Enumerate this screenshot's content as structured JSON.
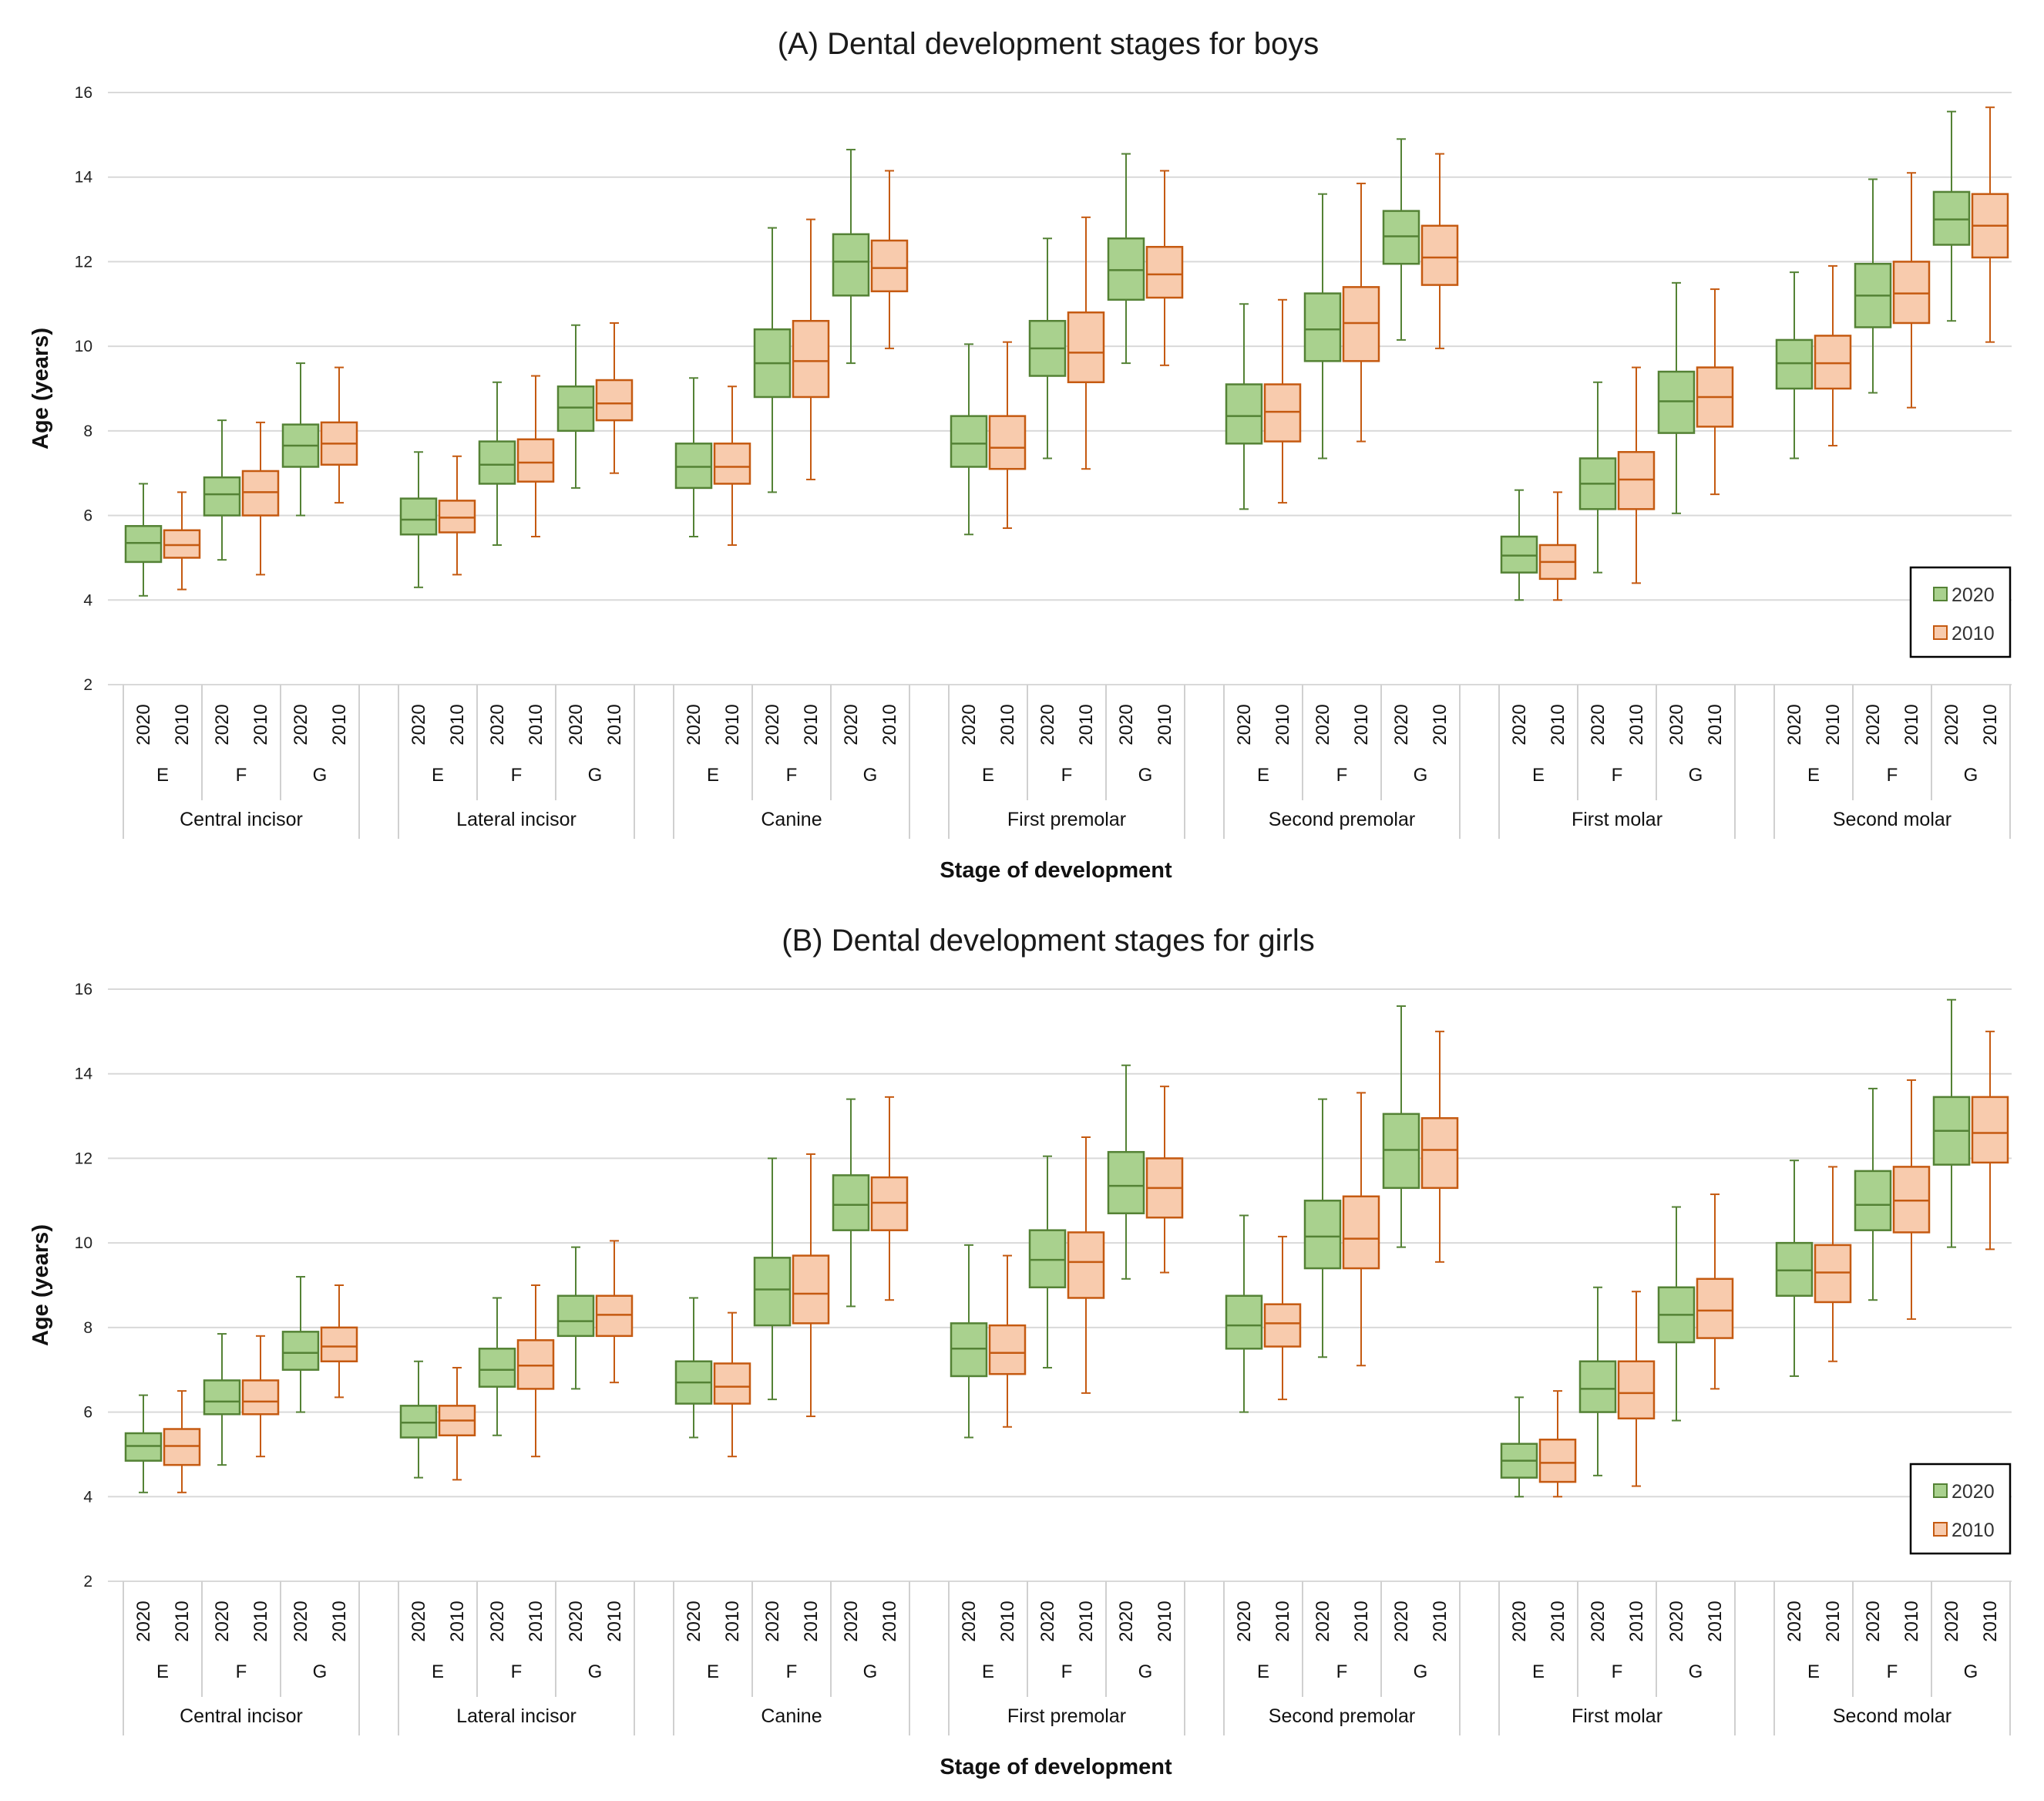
{
  "chart_data": [
    {
      "type": "box",
      "title": "(A) Dental development stages for boys",
      "xlabel": "Stage of development",
      "ylabel": "Age (years)",
      "ylim": [
        2,
        16
      ],
      "yticks": [
        2,
        4,
        6,
        8,
        10,
        12,
        14,
        16
      ],
      "grid": "horizontal",
      "legend": {
        "position": "right",
        "entries": [
          "2020",
          "2010"
        ]
      },
      "colors": {
        "2020_fill": "#a9d18e",
        "2020_stroke": "#548235",
        "2010_fill": "#f8cbad",
        "2010_stroke": "#c55a11"
      },
      "teeth": [
        "Central incisor",
        "Lateral incisor",
        "Canine",
        "First premolar",
        "Second premolar",
        "First molar",
        "Second molar"
      ],
      "stages": [
        "E",
        "F",
        "G"
      ],
      "series_years": [
        "2020",
        "2010"
      ],
      "box_format": "[whisker_low, Q1, median, Q3, whisker_high]",
      "boxes": [
        [
          [
            [
              4.1,
              4.9,
              5.35,
              5.75,
              6.75
            ],
            [
              4.25,
              5.0,
              5.3,
              5.65,
              6.55
            ]
          ],
          [
            [
              4.95,
              6.0,
              6.5,
              6.9,
              8.25
            ],
            [
              4.6,
              6.0,
              6.55,
              7.05,
              8.2
            ]
          ],
          [
            [
              6.0,
              7.15,
              7.65,
              8.15,
              9.6
            ],
            [
              6.3,
              7.2,
              7.7,
              8.2,
              9.5
            ]
          ]
        ],
        [
          [
            [
              4.3,
              5.55,
              5.9,
              6.4,
              7.5
            ],
            [
              4.6,
              5.6,
              5.95,
              6.35,
              7.4
            ]
          ],
          [
            [
              5.3,
              6.75,
              7.2,
              7.75,
              9.15
            ],
            [
              5.5,
              6.8,
              7.25,
              7.8,
              9.3
            ]
          ],
          [
            [
              6.65,
              8.0,
              8.55,
              9.05,
              10.5
            ],
            [
              7.0,
              8.25,
              8.65,
              9.2,
              10.55
            ]
          ]
        ],
        [
          [
            [
              5.5,
              6.65,
              7.15,
              7.7,
              9.25
            ],
            [
              5.3,
              6.75,
              7.15,
              7.7,
              9.05
            ]
          ],
          [
            [
              6.55,
              8.8,
              9.6,
              10.4,
              12.8
            ],
            [
              6.85,
              8.8,
              9.65,
              10.6,
              13.0
            ]
          ],
          [
            [
              9.6,
              11.2,
              12.0,
              12.65,
              14.65
            ],
            [
              9.95,
              11.3,
              11.85,
              12.5,
              14.15
            ]
          ]
        ],
        [
          [
            [
              5.55,
              7.15,
              7.7,
              8.35,
              10.05
            ],
            [
              5.7,
              7.1,
              7.6,
              8.35,
              10.1
            ]
          ],
          [
            [
              7.35,
              9.3,
              9.95,
              10.6,
              12.55
            ],
            [
              7.1,
              9.15,
              9.85,
              10.8,
              13.05
            ]
          ],
          [
            [
              9.6,
              11.1,
              11.8,
              12.55,
              14.55
            ],
            [
              9.55,
              11.15,
              11.7,
              12.35,
              14.15
            ]
          ]
        ],
        [
          [
            [
              6.15,
              7.7,
              8.35,
              9.1,
              11.0
            ],
            [
              6.3,
              7.75,
              8.45,
              9.1,
              11.1
            ]
          ],
          [
            [
              7.35,
              9.65,
              10.4,
              11.25,
              13.6
            ],
            [
              7.75,
              9.65,
              10.55,
              11.4,
              13.85
            ]
          ],
          [
            [
              10.15,
              11.95,
              12.6,
              13.2,
              14.9
            ],
            [
              9.95,
              11.45,
              12.1,
              12.85,
              14.55
            ]
          ]
        ],
        [
          [
            [
              4.0,
              4.65,
              5.05,
              5.5,
              6.6
            ],
            [
              4.0,
              4.5,
              4.9,
              5.3,
              6.55
            ]
          ],
          [
            [
              4.65,
              6.15,
              6.75,
              7.35,
              9.15
            ],
            [
              4.4,
              6.15,
              6.85,
              7.5,
              9.5
            ]
          ],
          [
            [
              6.05,
              7.95,
              8.7,
              9.4,
              11.5
            ],
            [
              6.5,
              8.1,
              8.8,
              9.5,
              11.35
            ]
          ]
        ],
        [
          [
            [
              7.35,
              9.0,
              9.6,
              10.15,
              11.75
            ],
            [
              7.65,
              9.0,
              9.6,
              10.25,
              11.9
            ]
          ],
          [
            [
              8.9,
              10.45,
              11.2,
              11.95,
              13.95
            ],
            [
              8.55,
              10.55,
              11.25,
              12.0,
              14.1
            ]
          ],
          [
            [
              10.6,
              12.4,
              13.0,
              13.65,
              15.55
            ],
            [
              10.1,
              12.1,
              12.85,
              13.6,
              15.65
            ]
          ]
        ]
      ]
    },
    {
      "type": "box",
      "title": "(B) Dental development stages for girls",
      "xlabel": "Stage of development",
      "ylabel": "Age (years)",
      "ylim": [
        2,
        16
      ],
      "yticks": [
        2,
        4,
        6,
        8,
        10,
        12,
        14,
        16
      ],
      "grid": "horizontal",
      "legend": {
        "position": "right",
        "entries": [
          "2020",
          "2010"
        ]
      },
      "colors": {
        "2020_fill": "#a9d18e",
        "2020_stroke": "#548235",
        "2010_fill": "#f8cbad",
        "2010_stroke": "#c55a11"
      },
      "teeth": [
        "Central incisor",
        "Lateral incisor",
        "Canine",
        "First premolar",
        "Second premolar",
        "First molar",
        "Second molar"
      ],
      "stages": [
        "E",
        "F",
        "G"
      ],
      "series_years": [
        "2020",
        "2010"
      ],
      "box_format": "[whisker_low, Q1, median, Q3, whisker_high]",
      "boxes": [
        [
          [
            [
              4.1,
              4.85,
              5.2,
              5.5,
              6.4
            ],
            [
              4.1,
              4.75,
              5.2,
              5.6,
              6.5
            ]
          ],
          [
            [
              4.75,
              5.95,
              6.25,
              6.75,
              7.85
            ],
            [
              4.95,
              5.95,
              6.25,
              6.75,
              7.8
            ]
          ],
          [
            [
              6.0,
              7.0,
              7.4,
              7.9,
              9.2
            ],
            [
              6.35,
              7.2,
              7.55,
              8.0,
              9.0
            ]
          ]
        ],
        [
          [
            [
              4.45,
              5.4,
              5.75,
              6.15,
              7.2
            ],
            [
              4.4,
              5.45,
              5.8,
              6.15,
              7.05
            ]
          ],
          [
            [
              5.45,
              6.6,
              7.0,
              7.5,
              8.7
            ],
            [
              4.95,
              6.55,
              7.1,
              7.7,
              9.0
            ]
          ],
          [
            [
              6.55,
              7.8,
              8.15,
              8.75,
              9.9
            ],
            [
              6.7,
              7.8,
              8.3,
              8.75,
              10.05
            ]
          ]
        ],
        [
          [
            [
              5.4,
              6.2,
              6.7,
              7.2,
              8.7
            ],
            [
              4.95,
              6.2,
              6.6,
              7.15,
              8.35
            ]
          ],
          [
            [
              6.3,
              8.05,
              8.9,
              9.65,
              12.0
            ],
            [
              5.9,
              8.1,
              8.8,
              9.7,
              12.1
            ]
          ],
          [
            [
              8.5,
              10.3,
              10.9,
              11.6,
              13.4
            ],
            [
              8.65,
              10.3,
              10.95,
              11.55,
              13.45
            ]
          ]
        ],
        [
          [
            [
              5.4,
              6.85,
              7.5,
              8.1,
              9.95
            ],
            [
              5.65,
              6.9,
              7.4,
              8.05,
              9.7
            ]
          ],
          [
            [
              7.05,
              8.95,
              9.6,
              10.3,
              12.05
            ],
            [
              6.45,
              8.7,
              9.55,
              10.25,
              12.5
            ]
          ],
          [
            [
              9.15,
              10.7,
              11.35,
              12.15,
              14.2
            ],
            [
              9.3,
              10.6,
              11.3,
              12.0,
              13.7
            ]
          ]
        ],
        [
          [
            [
              6.0,
              7.5,
              8.05,
              8.75,
              10.65
            ],
            [
              6.3,
              7.55,
              8.1,
              8.55,
              10.15
            ]
          ],
          [
            [
              7.3,
              9.4,
              10.15,
              11.0,
              13.4
            ],
            [
              7.1,
              9.4,
              10.1,
              11.1,
              13.55
            ]
          ],
          [
            [
              9.9,
              11.3,
              12.2,
              13.05,
              15.6
            ],
            [
              9.55,
              11.3,
              12.2,
              12.95,
              15.0
            ]
          ]
        ],
        [
          [
            [
              4.0,
              4.45,
              4.85,
              5.25,
              6.35
            ],
            [
              4.0,
              4.35,
              4.8,
              5.35,
              6.5
            ]
          ],
          [
            [
              4.5,
              6.0,
              6.55,
              7.2,
              8.95
            ],
            [
              4.25,
              5.85,
              6.45,
              7.2,
              8.85
            ]
          ],
          [
            [
              5.8,
              7.65,
              8.3,
              8.95,
              10.85
            ],
            [
              6.55,
              7.75,
              8.4,
              9.15,
              11.15
            ]
          ]
        ],
        [
          [
            [
              6.85,
              8.75,
              9.35,
              10.0,
              11.95
            ],
            [
              7.2,
              8.6,
              9.3,
              9.95,
              11.8
            ]
          ],
          [
            [
              8.65,
              10.3,
              10.9,
              11.7,
              13.65
            ],
            [
              8.2,
              10.25,
              11.0,
              11.8,
              13.85
            ]
          ],
          [
            [
              9.9,
              11.85,
              12.65,
              13.45,
              15.75
            ],
            [
              9.85,
              11.9,
              12.6,
              13.45,
              15.0
            ]
          ]
        ]
      ]
    }
  ]
}
